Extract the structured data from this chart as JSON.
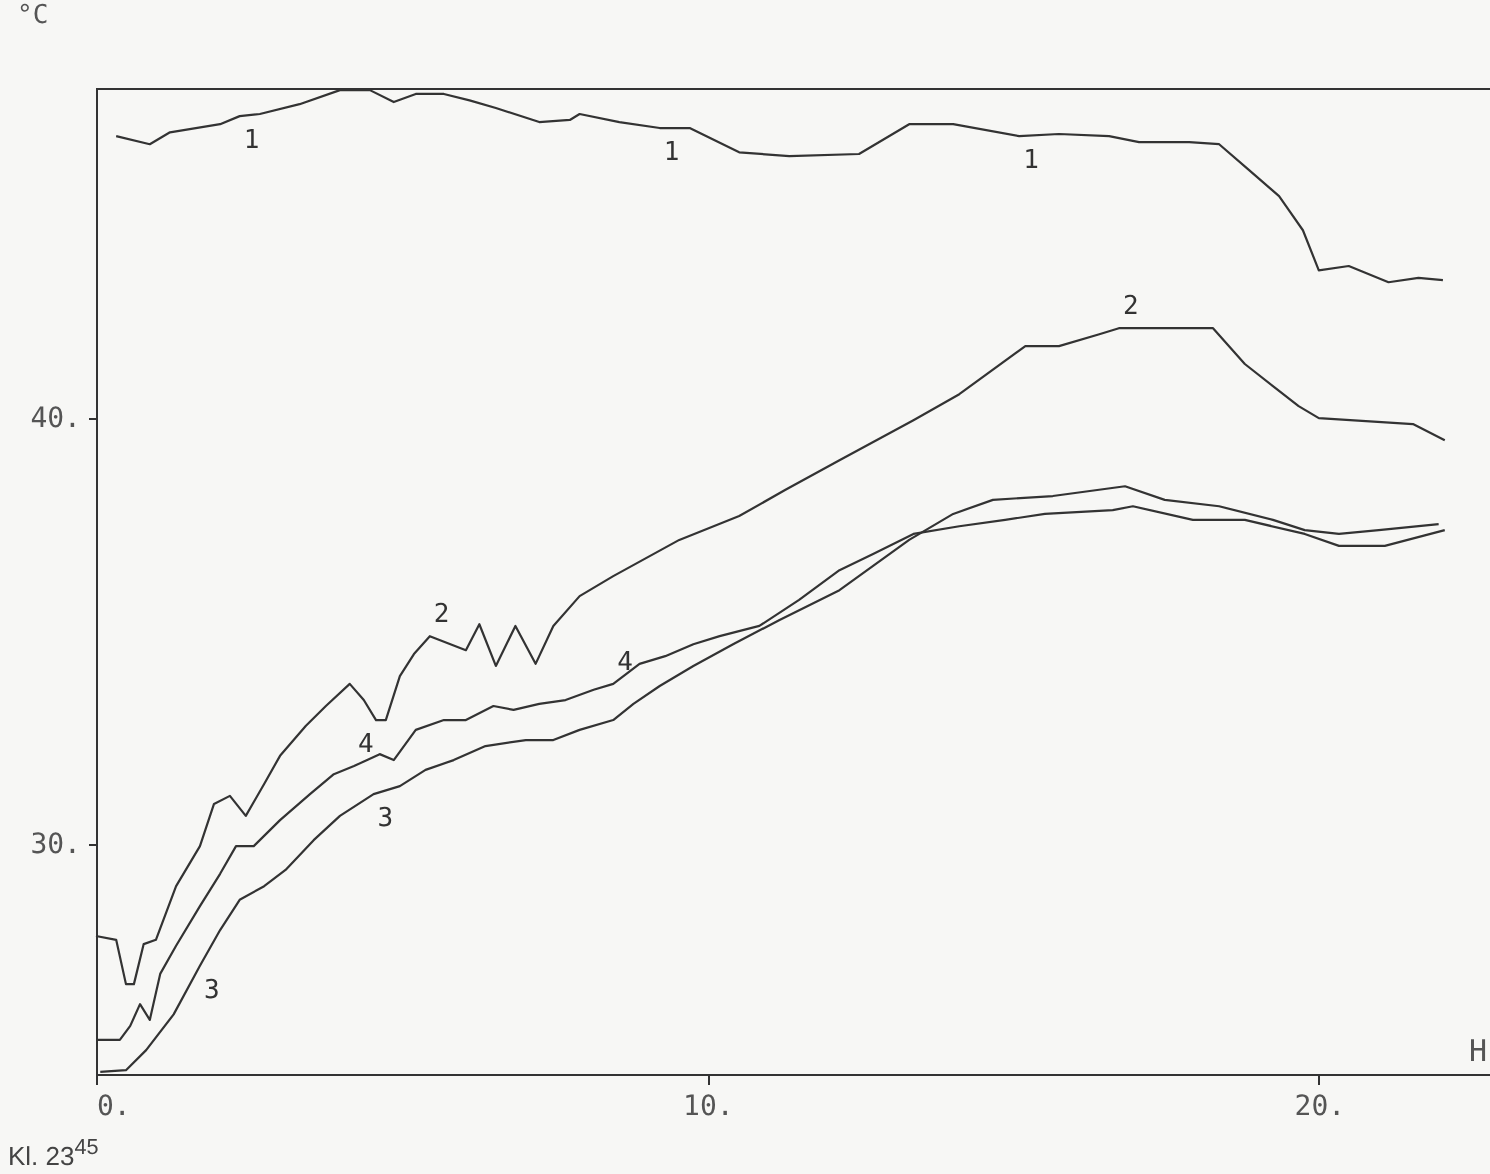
{
  "chart_data": {
    "type": "line",
    "xlabel": "H",
    "ylabel": "°C",
    "annotations": [
      "Kl. 23$^{45}$"
    ],
    "xlim": [
      0,
      22.8
    ],
    "ylim": [
      24.6,
      47.75
    ],
    "xticks": [
      {
        "value": 0,
        "label": "0."
      },
      {
        "value": 10,
        "label": "10."
      },
      {
        "value": 20,
        "label": "20."
      }
    ],
    "yticks": [
      {
        "value": 30,
        "label": "30."
      },
      {
        "value": 40,
        "label": "40."
      }
    ],
    "grid": false,
    "legend": false,
    "marker": "none",
    "line_style": "solid",
    "series": [
      {
        "name": "1",
        "color": "#333333",
        "x": [
          0.33,
          0.88,
          1.21,
          2.03,
          2.35,
          2.68,
          3.33,
          3.99,
          4.48,
          4.87,
          5.23,
          5.69,
          6.11,
          6.54,
          7.25,
          7.75,
          7.91,
          8.56,
          9.22,
          9.71,
          10.52,
          11.34,
          12.48,
          13.3,
          14.02,
          15.1,
          15.75,
          16.57,
          17.06,
          17.88,
          18.37,
          18.86,
          19.35,
          19.51,
          19.74,
          20.0,
          20.49,
          21.14,
          21.63,
          22.03
        ],
        "values": [
          46.62,
          46.43,
          46.71,
          46.9,
          47.09,
          47.14,
          47.37,
          47.7,
          47.7,
          47.42,
          47.61,
          47.61,
          47.46,
          47.28,
          46.95,
          47.0,
          47.14,
          46.95,
          46.81,
          46.81,
          46.24,
          46.15,
          46.2,
          46.9,
          46.9,
          46.62,
          46.67,
          46.62,
          46.48,
          46.48,
          46.43,
          45.82,
          45.21,
          44.88,
          44.41,
          43.47,
          43.57,
          43.19,
          43.29,
          43.24
        ]
      },
      {
        "name": "2",
        "color": "#333333",
        "x": [
          0,
          0.33,
          0.49,
          0.62,
          0.78,
          0.98,
          1.31,
          1.7,
          1.93,
          2.19,
          2.45,
          2.75,
          3.01,
          3.43,
          3.76,
          4.15,
          4.38,
          4.58,
          4.74,
          4.97,
          5.2,
          5.46,
          6.05,
          6.27,
          6.54,
          6.86,
          7.19,
          7.48,
          7.91,
          8.46,
          9.54,
          10.52,
          11.27,
          12.16,
          13.37,
          14.12,
          15.2,
          15.75,
          16.41,
          16.73,
          18.27,
          18.79,
          19.25,
          19.67,
          20.0,
          21.54,
          22.06
        ],
        "values": [
          27.84,
          27.75,
          26.71,
          26.71,
          27.65,
          27.75,
          29.01,
          29.95,
          30.94,
          31.13,
          30.66,
          31.41,
          32.07,
          32.77,
          33.24,
          33.76,
          33.38,
          32.91,
          32.91,
          33.94,
          34.46,
          34.88,
          34.55,
          35.16,
          34.18,
          35.12,
          34.23,
          35.12,
          35.82,
          36.29,
          37.14,
          37.7,
          38.31,
          39.01,
          39.95,
          40.56,
          41.69,
          41.69,
          41.97,
          42.11,
          42.11,
          41.27,
          40.75,
          40.28,
          40.0,
          39.86,
          39.48
        ]
      },
      {
        "name": "3",
        "color": "#333333",
        "x": [
          0.07,
          0.49,
          0.82,
          1.27,
          1.7,
          2.03,
          2.35,
          2.75,
          3.1,
          3.56,
          3.99,
          4.54,
          4.97,
          5.39,
          5.85,
          6.37,
          7.03,
          7.48,
          7.91,
          8.46,
          8.79,
          9.22,
          9.77,
          10.42,
          11.18,
          12.16,
          13.3,
          14.02,
          14.67,
          15.65,
          16.83,
          17.48,
          18.37,
          19.25,
          19.77,
          20.33,
          20.98,
          21.96
        ],
        "values": [
          24.65,
          24.69,
          25.16,
          26.0,
          27.14,
          27.98,
          28.69,
          29.01,
          29.39,
          30.09,
          30.66,
          31.17,
          31.36,
          31.74,
          31.97,
          32.3,
          32.44,
          32.44,
          32.68,
          32.91,
          33.29,
          33.71,
          34.18,
          34.69,
          35.26,
          35.96,
          37.14,
          37.75,
          38.08,
          38.17,
          38.4,
          38.08,
          37.93,
          37.61,
          37.37,
          37.28,
          37.37,
          37.51
        ]
      },
      {
        "name": "4",
        "color": "#333333",
        "x": [
          0,
          0.39,
          0.56,
          0.72,
          0.88,
          1.05,
          1.31,
          1.7,
          2.03,
          2.29,
          2.58,
          3.01,
          3.5,
          3.89,
          4.22,
          4.64,
          4.87,
          5.23,
          5.69,
          6.05,
          6.5,
          6.83,
          7.25,
          7.68,
          8.14,
          8.46,
          8.89,
          9.31,
          9.77,
          10.2,
          10.85,
          11.5,
          12.16,
          12.71,
          13.37,
          14.12,
          14.87,
          15.52,
          16.63,
          16.96,
          17.94,
          18.79,
          19.77,
          20.33,
          21.08,
          22.06
        ],
        "values": [
          25.4,
          25.4,
          25.73,
          26.24,
          25.87,
          26.95,
          27.61,
          28.54,
          29.3,
          29.95,
          29.95,
          30.56,
          31.17,
          31.64,
          31.83,
          32.11,
          31.97,
          32.68,
          32.91,
          32.91,
          33.24,
          33.15,
          33.29,
          33.38,
          33.62,
          33.76,
          34.23,
          34.41,
          34.69,
          34.88,
          35.12,
          35.73,
          36.43,
          36.81,
          37.28,
          37.46,
          37.61,
          37.75,
          37.84,
          37.93,
          37.61,
          37.61,
          37.28,
          37.0,
          37.0,
          37.37
        ]
      }
    ]
  }
}
